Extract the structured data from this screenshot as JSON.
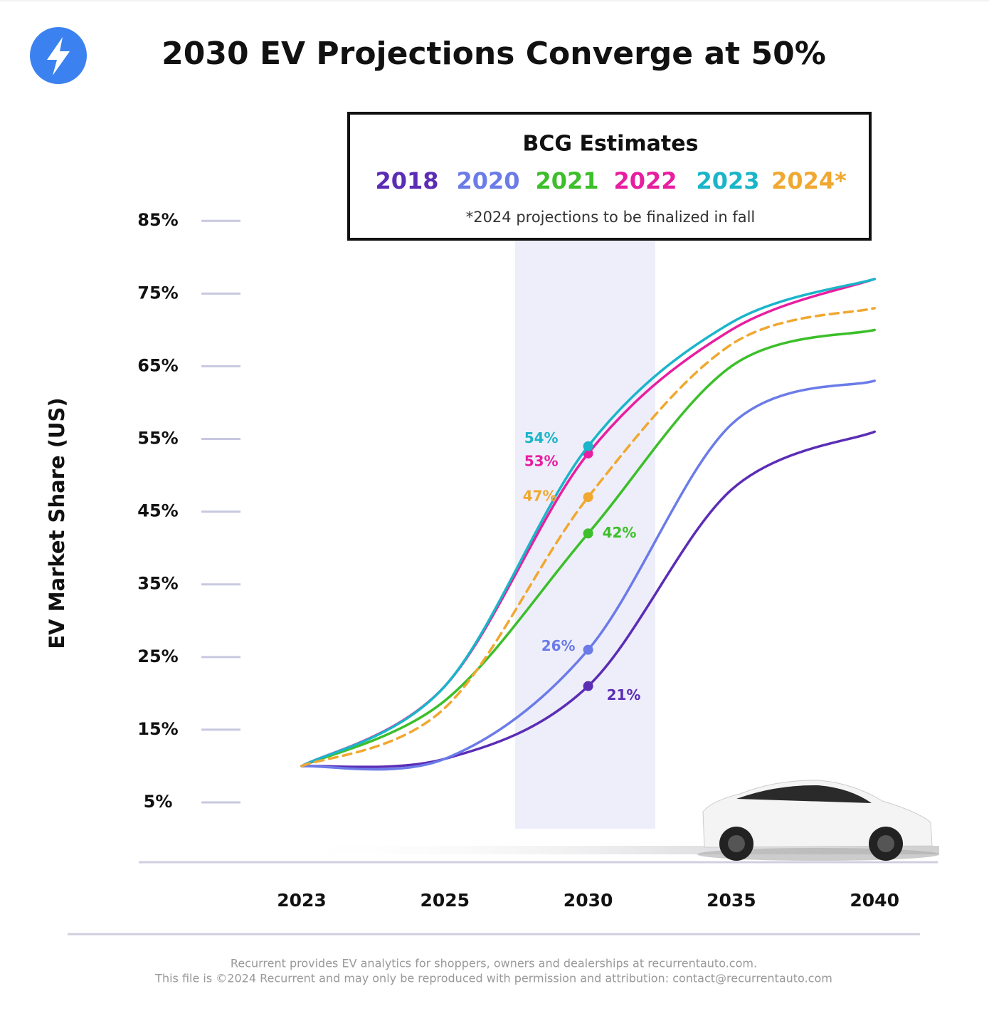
{
  "chart_data": {
    "type": "line",
    "title": "2030 EV Projections Converge at 50%",
    "ylabel": "EV Market Share (US)",
    "legend_title": "BCG Estimates",
    "legend_note": "*2024 projections to be finalized in fall",
    "categories": [
      "2023",
      "2025",
      "2030",
      "2035",
      "2040"
    ],
    "ylim": [
      -3,
      88
    ],
    "yticks": [
      {
        "value": 5,
        "label": "5%"
      },
      {
        "value": 15,
        "label": "15%"
      },
      {
        "value": 25,
        "label": "25%"
      },
      {
        "value": 35,
        "label": "35%"
      },
      {
        "value": 45,
        "label": "45%"
      },
      {
        "value": 55,
        "label": "55%"
      },
      {
        "value": 65,
        "label": "65%"
      },
      {
        "value": 75,
        "label": "75%"
      },
      {
        "value": 85,
        "label": "85%"
      }
    ],
    "series": [
      {
        "name": "2018",
        "color": "#5b2db5",
        "line_style": "solid",
        "values": [
          10,
          11,
          21,
          48,
          56
        ],
        "value_labels": [
          null,
          null,
          "21%",
          null,
          null
        ]
      },
      {
        "name": "2020",
        "color": "#6b7be8",
        "line_style": "solid",
        "values": [
          10,
          11,
          26,
          57,
          63
        ],
        "value_labels": [
          null,
          null,
          "26%",
          null,
          null
        ]
      },
      {
        "name": "2021",
        "color": "#3cbf2a",
        "line_style": "solid",
        "values": [
          10,
          19,
          42,
          65,
          70
        ],
        "value_labels": [
          null,
          null,
          "42%",
          null,
          null
        ]
      },
      {
        "name": "2022",
        "color": "#e81ea0",
        "line_style": "solid",
        "values": [
          10,
          21,
          53,
          70,
          77
        ],
        "value_labels": [
          null,
          null,
          "53%",
          null,
          null
        ]
      },
      {
        "name": "2023",
        "color": "#1bb5c9",
        "line_style": "solid",
        "values": [
          10,
          21,
          54,
          71,
          77
        ],
        "value_labels": [
          null,
          null,
          "54%",
          null,
          null
        ]
      },
      {
        "name": "2024*",
        "color": "#f0a830",
        "line_style": "dashed",
        "values": [
          10,
          18,
          47,
          68,
          73
        ],
        "value_labels": [
          null,
          null,
          "47%",
          null,
          null
        ]
      }
    ]
  },
  "footer": {
    "line1": "Recurrent provides EV analytics for shoppers, owners and dealerships at recurrentauto.com.",
    "line2": "This file is ©2024 Recurrent and may only be reproduced with permission and attribution: contact@recurrentauto.com"
  }
}
